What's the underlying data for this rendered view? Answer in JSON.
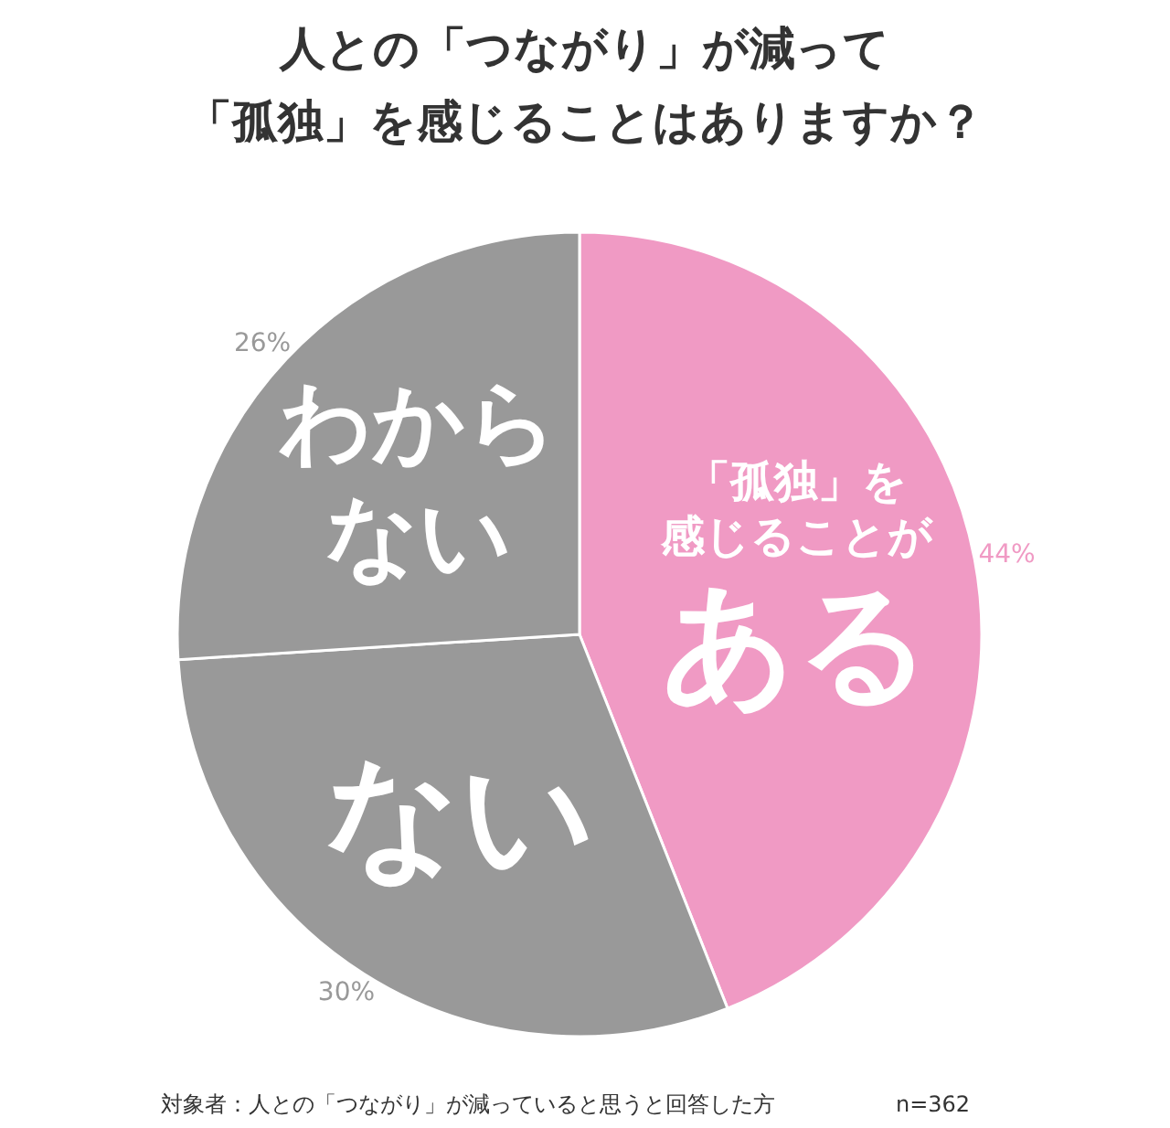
{
  "chart_data": {
    "type": "pie",
    "title": [
      "人との「つながり」が減って",
      "「孤独」を感じることはありますか？"
    ],
    "categories": [
      "「孤独」を感じることがある",
      "ない",
      "わからない"
    ],
    "values": [
      44,
      30,
      26
    ],
    "colors": [
      "#f09ac4",
      "#999999",
      "#999999"
    ],
    "value_labels": [
      "44%",
      "30%",
      "26%"
    ],
    "annotations": [
      "対象者：人との「つながり」が減っていると思うと回答した方",
      "n=362"
    ]
  }
}
